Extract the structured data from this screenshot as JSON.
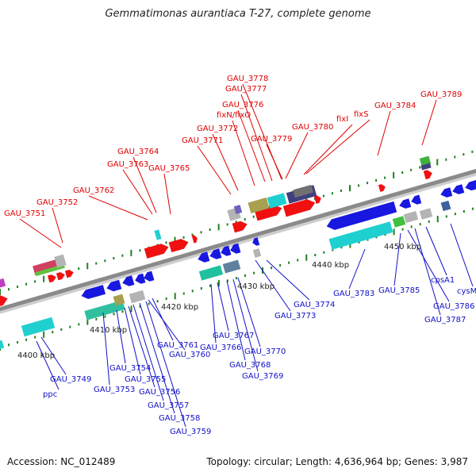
{
  "title": "Gemmatimonas aurantiaca T-27, complete genome",
  "footer": {
    "accession": "Accession: NC_012489",
    "summary": "Topology: circular; Length: 4,636,964 bp; Genes: 3,987"
  },
  "colors": {
    "top_label": "#e00000",
    "bottom_label": "#1010c8",
    "backbone": "#8a8a8a",
    "tick": "#208020",
    "red": "#f01010",
    "blue": "#1818e0",
    "cyan": "#20d0d0",
    "gray": "#b4b4b4",
    "olive": "#a8a050",
    "slate": "#404080"
  },
  "scale": [
    "4400 kbp",
    "4410 kbp",
    "4420 kbp",
    "4430 kbp",
    "4440 kbp",
    "4450 kbp"
  ],
  "top_labels": [
    "GAU_3751",
    "GAU_3752",
    "GAU_3762",
    "GAU_3763",
    "GAU_3764",
    "GAU_3765",
    "GAU_3771",
    "GAU_3772",
    "fixN/fixO",
    "GAU_3776",
    "GAU_3777",
    "GAU_3778",
    "GAU_3779",
    "GAU_3780",
    "fixI",
    "fixS",
    "GAU_3784",
    "GAU_3789"
  ],
  "bottom_labels": [
    "ppc",
    "GAU_3749",
    "GAU_3753",
    "GAU_3754",
    "GAU_3755",
    "GAU_3756",
    "GAU_3757",
    "GAU_3758",
    "GAU_3759",
    "GAU_3760",
    "GAU_3761",
    "GAU_3766",
    "GAU_3767",
    "GAU_3768",
    "GAU_3769",
    "GAU_3770",
    "GAU_3773",
    "GAU_3774",
    "GAU_3783",
    "GAU_3785",
    "GAU_3786",
    "GAU_3787",
    "cpsA1",
    "cysM"
  ]
}
